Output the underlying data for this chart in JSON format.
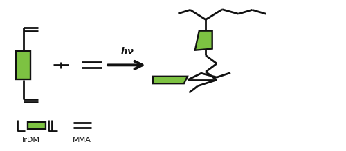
{
  "bg_color": "#ffffff",
  "green_color": "#7dc242",
  "black_color": "#111111",
  "line_width": 2.0,
  "figsize": [
    5.0,
    2.19
  ],
  "dpi": 100
}
